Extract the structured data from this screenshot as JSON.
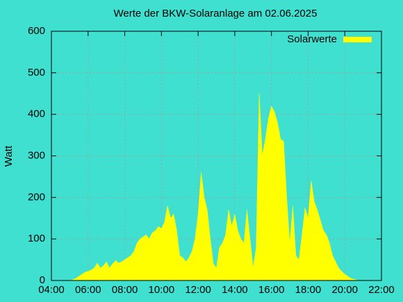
{
  "chart_data": {
    "type": "area",
    "title": "Werte der BKW-Solaranlage am 02.06.2025",
    "y_label": "Watt",
    "xlim": [
      "04:00",
      "22:00"
    ],
    "xticks": [
      "04:00",
      "06:00",
      "08:00",
      "10:00",
      "12:00",
      "14:00",
      "16:00",
      "18:00",
      "20:00",
      "22:00"
    ],
    "ylim": [
      0,
      600
    ],
    "yticks": [
      0,
      100,
      200,
      300,
      400,
      500,
      600
    ],
    "grid": true,
    "legend": "top-right",
    "x": [
      "05:00",
      "05:10",
      "05:20",
      "05:30",
      "05:40",
      "05:50",
      "06:00",
      "06:10",
      "06:20",
      "06:30",
      "06:40",
      "06:50",
      "07:00",
      "07:10",
      "07:20",
      "07:30",
      "07:40",
      "07:50",
      "08:00",
      "08:10",
      "08:20",
      "08:30",
      "08:40",
      "08:50",
      "09:00",
      "09:10",
      "09:20",
      "09:30",
      "09:40",
      "09:50",
      "10:00",
      "10:10",
      "10:20",
      "10:30",
      "10:40",
      "10:50",
      "11:00",
      "11:10",
      "11:20",
      "11:30",
      "11:40",
      "11:50",
      "12:00",
      "12:10",
      "12:20",
      "12:30",
      "12:40",
      "12:50",
      "13:00",
      "13:10",
      "13:20",
      "13:30",
      "13:40",
      "13:50",
      "14:00",
      "14:10",
      "14:20",
      "14:30",
      "14:40",
      "14:50",
      "15:00",
      "15:10",
      "15:20",
      "15:30",
      "15:40",
      "15:50",
      "16:00",
      "16:10",
      "16:20",
      "16:30",
      "16:40",
      "16:50",
      "17:00",
      "17:10",
      "17:20",
      "17:30",
      "17:40",
      "17:50",
      "18:00",
      "18:10",
      "18:20",
      "18:30",
      "18:40",
      "18:50",
      "19:00",
      "19:10",
      "19:20",
      "19:30",
      "19:40",
      "19:50",
      "20:00",
      "20:10",
      "20:20",
      "20:30",
      "20:40",
      "20:50"
    ],
    "series": [
      {
        "name": "Solarwerte",
        "color": "#ffff00",
        "values": [
          0,
          2,
          5,
          10,
          15,
          20,
          22,
          25,
          30,
          42,
          30,
          35,
          45,
          30,
          40,
          48,
          42,
          45,
          50,
          55,
          60,
          70,
          90,
          100,
          105,
          110,
          100,
          115,
          120,
          130,
          125,
          140,
          180,
          150,
          160,
          120,
          60,
          55,
          45,
          55,
          70,
          100,
          160,
          260,
          200,
          170,
          100,
          40,
          30,
          80,
          90,
          110,
          170,
          130,
          160,
          120,
          100,
          90,
          170,
          100,
          30,
          80,
          450,
          300,
          340,
          390,
          420,
          405,
          380,
          340,
          335,
          200,
          90,
          180,
          60,
          50,
          110,
          175,
          150,
          240,
          190,
          170,
          145,
          120,
          110,
          90,
          60,
          45,
          30,
          22,
          15,
          10,
          5,
          3,
          1,
          0
        ]
      }
    ]
  }
}
